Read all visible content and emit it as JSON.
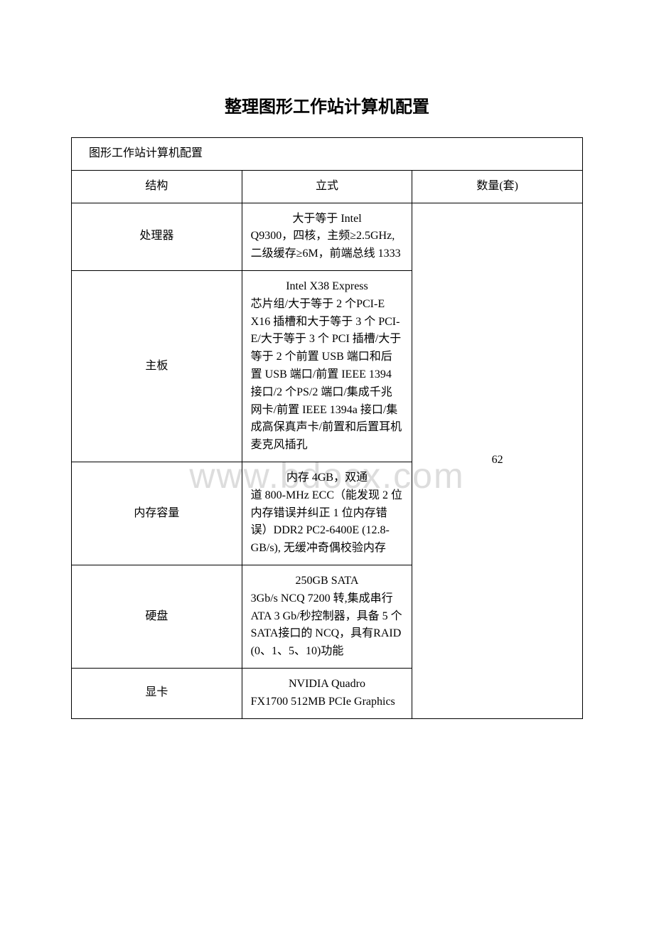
{
  "title": "整理图形工作站计算机配置",
  "watermark": "www.bdocx.com",
  "table": {
    "caption": "图形工作站计算机配置",
    "header": {
      "c1": "结构",
      "c2": "立式",
      "c3": "数量(套)"
    },
    "qty_value": "62",
    "rows": [
      {
        "label": "处理器",
        "spec_first": "大于等于 Intel",
        "spec_rest": "Q9300，四核，主频≥2.5GHz,二级缓存≥6M，前端总线 1333"
      },
      {
        "label": "主板",
        "spec_first": "Intel X38 Express",
        "spec_rest": "芯片组/大于等于 2 个PCI-E X16 插槽和大于等于 3 个 PCI-E/大于等于 3 个 PCI 插槽/大于等于 2 个前置 USB 端口和后置 USB 端口/前置 IEEE 1394 接口/2 个PS/2 端口/集成千兆网卡/前置 IEEE 1394a 接口/集成高保真声卡/前置和后置耳机麦克风插孔"
      },
      {
        "label": "内存容量",
        "spec_first": "内存 4GB，双通",
        "spec_rest": "道 800-MHz ECC（能发现 2 位内存错误并纠正 1 位内存错误）DDR2 PC2-6400E (12.8-GB/s), 无缓冲奇偶校验内存"
      },
      {
        "label": "硬盘",
        "spec_first": "250GB SATA",
        "spec_rest": "3Gb/s NCQ 7200 转,集成串行 ATA 3 Gb/秒控制器，具备 5 个 SATA接口的 NCQ，具有RAID (0、1、5、10)功能"
      },
      {
        "label": "显卡",
        "spec_first": "NVIDIA Quadro",
        "spec_rest": "FX1700 512MB PCIe Graphics"
      }
    ]
  }
}
